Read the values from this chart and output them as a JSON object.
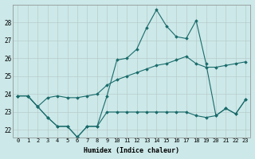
{
  "title": "",
  "xlabel": "Humidex (Indice chaleur)",
  "ylabel": "",
  "bg_color": "#cce8e8",
  "grid_color": "#b8cccc",
  "line_color": "#1a6b6b",
  "xlim": [
    -0.5,
    23.5
  ],
  "ylim": [
    21.6,
    29.0
  ],
  "yticks": [
    22,
    23,
    24,
    25,
    26,
    27,
    28
  ],
  "xticks": [
    0,
    1,
    2,
    3,
    4,
    5,
    6,
    7,
    8,
    9,
    10,
    11,
    12,
    13,
    14,
    15,
    16,
    17,
    18,
    19,
    20,
    21,
    22,
    23
  ],
  "series": [
    [
      23.9,
      23.9,
      23.3,
      22.7,
      22.2,
      22.2,
      21.6,
      22.2,
      22.2,
      23.9,
      25.9,
      26.0,
      26.5,
      27.7,
      28.7,
      27.8,
      27.2,
      27.1,
      28.1,
      25.7,
      22.8,
      23.2,
      22.9,
      23.7
    ],
    [
      23.9,
      23.9,
      23.3,
      22.7,
      22.2,
      22.2,
      21.6,
      22.2,
      22.2,
      23.0,
      23.0,
      23.0,
      23.0,
      23.0,
      23.0,
      23.0,
      23.0,
      23.0,
      22.8,
      22.7,
      22.8,
      23.2,
      22.9,
      23.7
    ],
    [
      23.9,
      23.9,
      23.3,
      23.8,
      23.9,
      23.8,
      23.8,
      23.9,
      24.0,
      24.5,
      24.8,
      25.0,
      25.2,
      25.4,
      25.6,
      25.7,
      25.9,
      26.1,
      25.7,
      25.5,
      25.5,
      25.6,
      25.7,
      25.8
    ]
  ]
}
